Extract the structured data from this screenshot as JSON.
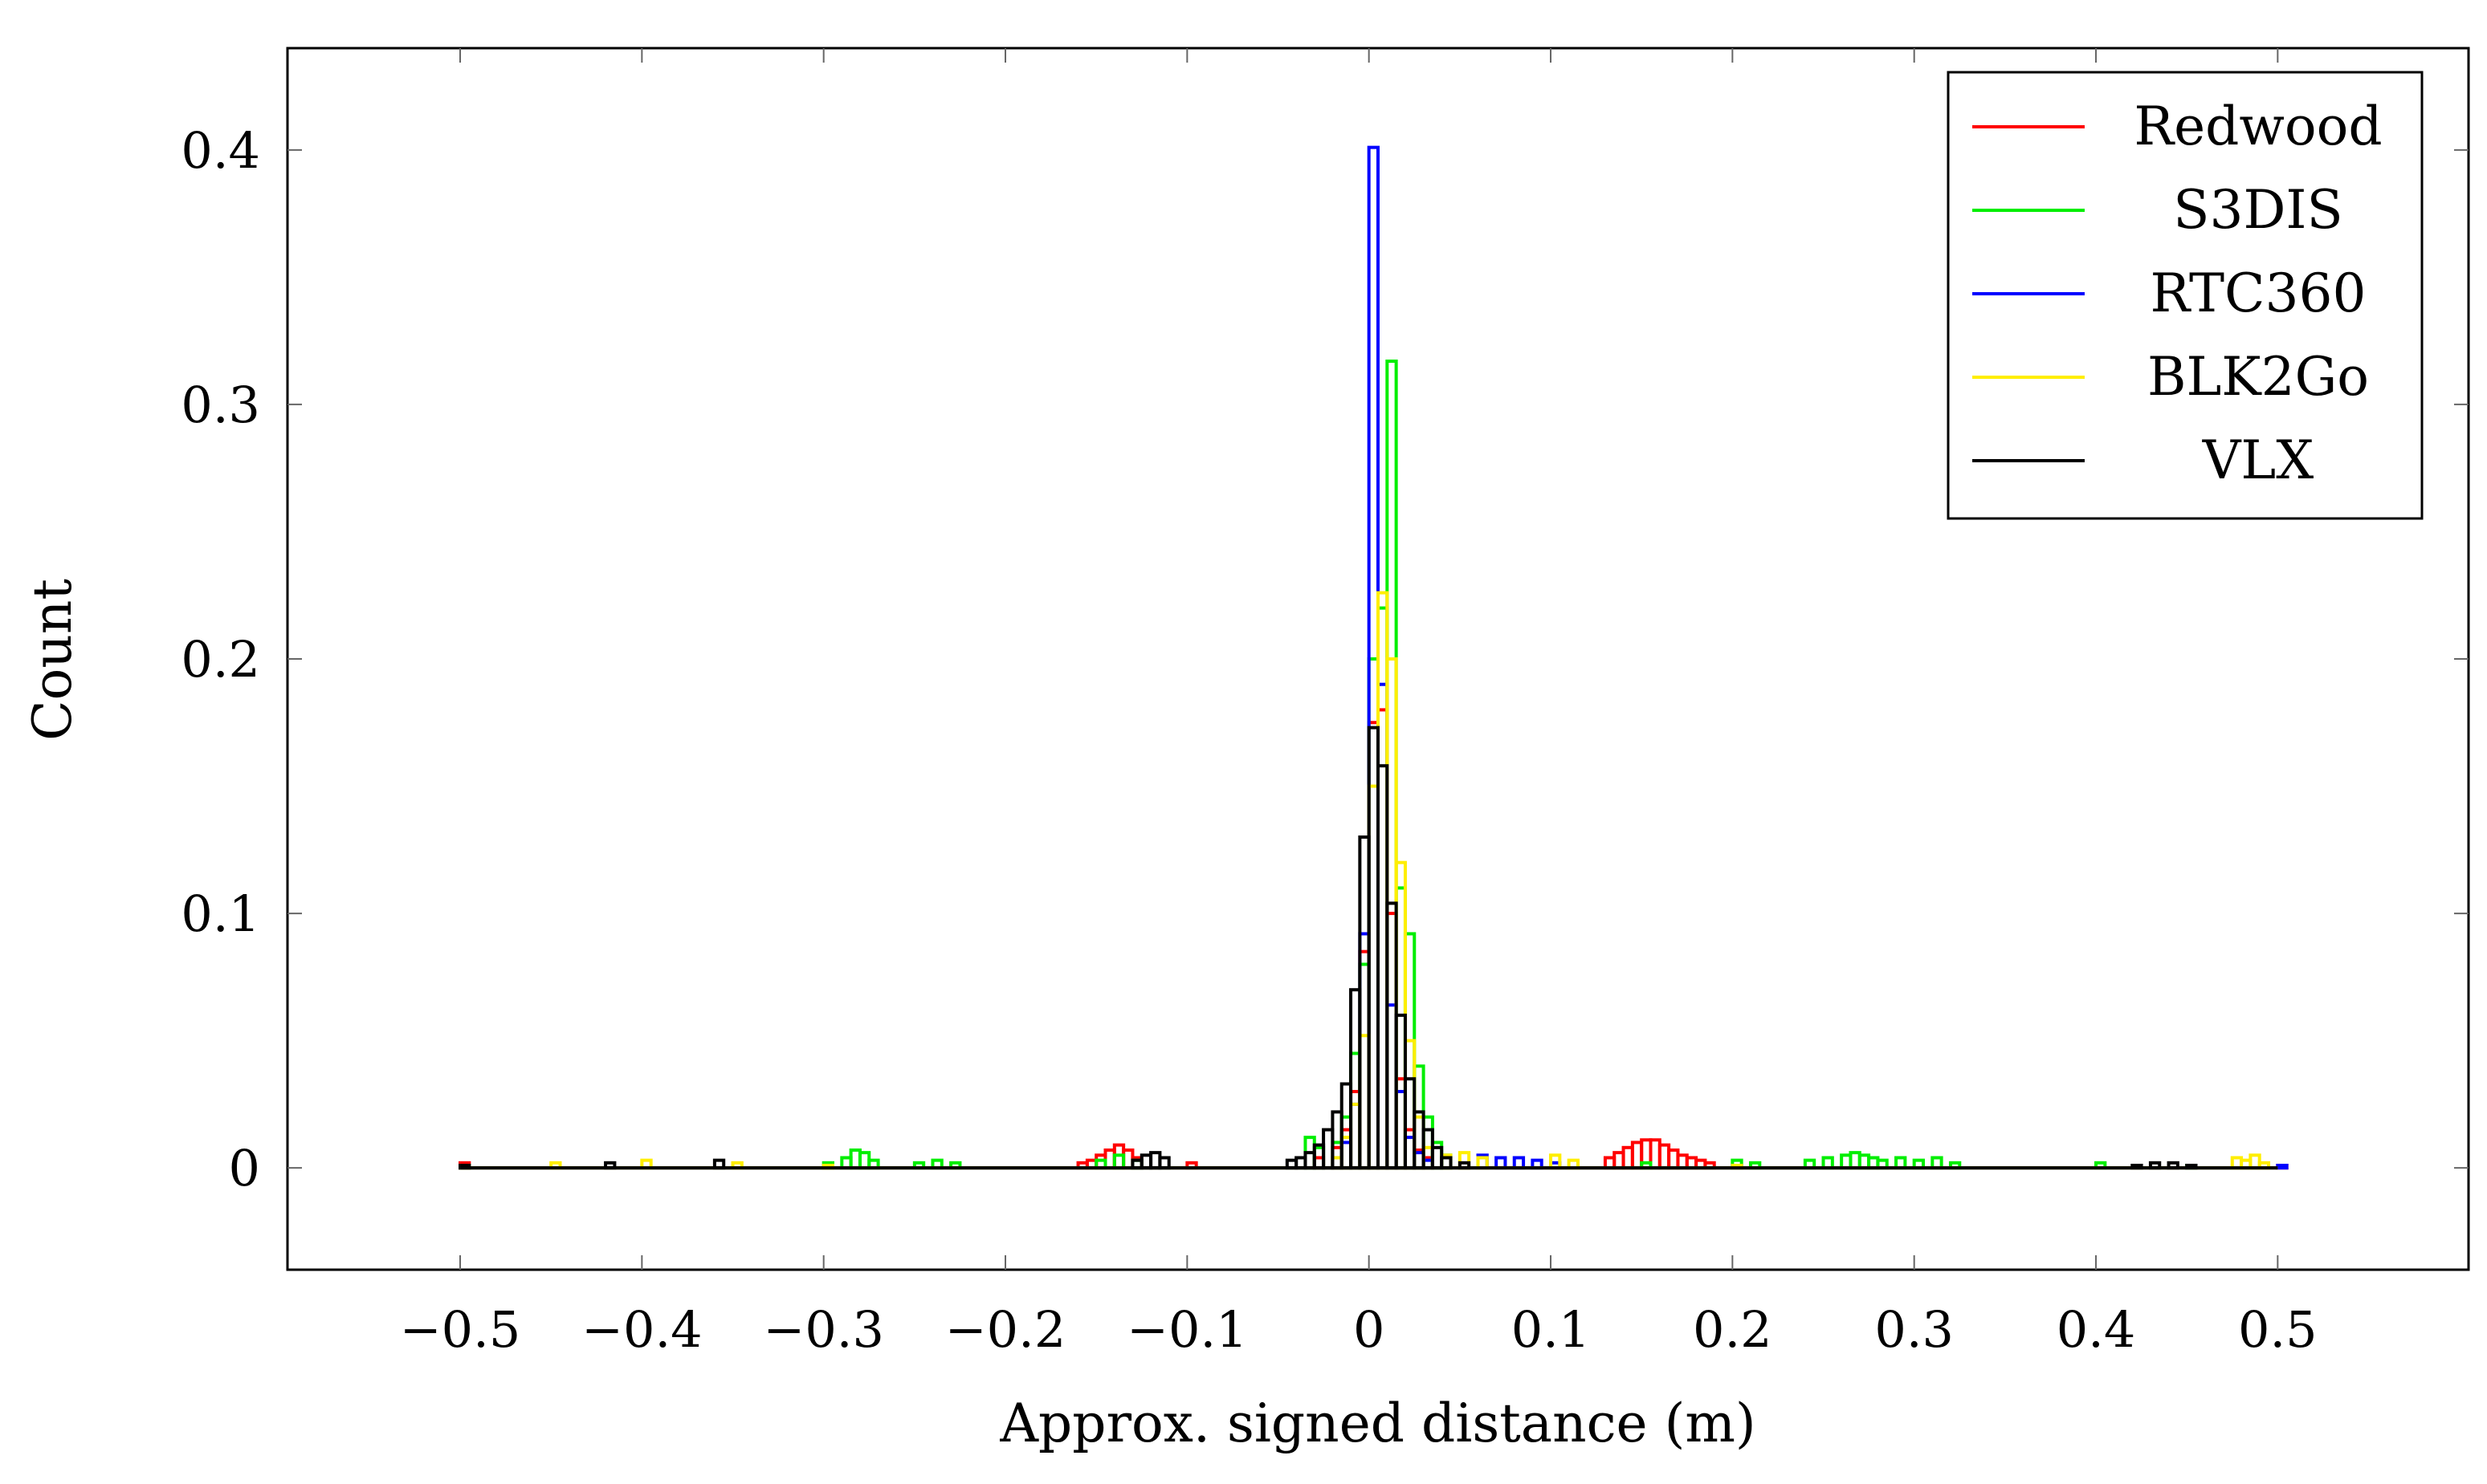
{
  "chart_data": {
    "type": "histogram",
    "title": "",
    "xlabel": "Approx. signed distance (m)",
    "ylabel": "Count",
    "xlim": [
      -0.595,
      0.605
    ],
    "ylim": [
      -0.04,
      0.44
    ],
    "xticks": [
      -0.5,
      -0.4,
      -0.3,
      -0.2,
      -0.1,
      0,
      0.1,
      0.2,
      0.3,
      0.4,
      0.5
    ],
    "xtick_labels": [
      "−0.5",
      "−0.4",
      "−0.3",
      "−0.2",
      "−0.1",
      "0",
      "0.1",
      "0.2",
      "0.3",
      "0.4",
      "0.5"
    ],
    "yticks": [
      0,
      0.1,
      0.2,
      0.3,
      0.4
    ],
    "ytick_labels": [
      "0",
      "0.1",
      "0.2",
      "0.3",
      "0.4"
    ],
    "bin_width": 0.005,
    "legend_position": "top-right",
    "series": [
      {
        "name": "Redwood",
        "color": "#ff0000",
        "bins": [
          [
            -0.5,
            0.002
          ],
          [
            -0.3,
            0.001
          ],
          [
            -0.16,
            0.002
          ],
          [
            -0.155,
            0.003
          ],
          [
            -0.15,
            0.005
          ],
          [
            -0.145,
            0.007
          ],
          [
            -0.14,
            0.009
          ],
          [
            -0.135,
            0.007
          ],
          [
            -0.13,
            0.004
          ],
          [
            -0.1,
            0.002
          ],
          [
            -0.03,
            0.004
          ],
          [
            -0.02,
            0.008
          ],
          [
            -0.015,
            0.015
          ],
          [
            -0.01,
            0.03
          ],
          [
            -0.005,
            0.085
          ],
          [
            0,
            0.175
          ],
          [
            0.005,
            0.18
          ],
          [
            0.01,
            0.1
          ],
          [
            0.015,
            0.035
          ],
          [
            0.02,
            0.015
          ],
          [
            0.025,
            0.007
          ],
          [
            0.03,
            0.004
          ],
          [
            0.13,
            0.004
          ],
          [
            0.135,
            0.006
          ],
          [
            0.14,
            0.008
          ],
          [
            0.145,
            0.01
          ],
          [
            0.15,
            0.011
          ],
          [
            0.155,
            0.011
          ],
          [
            0.16,
            0.009
          ],
          [
            0.165,
            0.007
          ],
          [
            0.17,
            0.005
          ],
          [
            0.175,
            0.004
          ],
          [
            0.18,
            0.003
          ],
          [
            0.185,
            0.002
          ],
          [
            0.5,
            0.001
          ]
        ]
      },
      {
        "name": "S3DIS",
        "color": "#00ee00",
        "bins": [
          [
            -0.5,
            0.001
          ],
          [
            -0.3,
            0.002
          ],
          [
            -0.29,
            0.004
          ],
          [
            -0.285,
            0.007
          ],
          [
            -0.28,
            0.006
          ],
          [
            -0.275,
            0.003
          ],
          [
            -0.25,
            0.002
          ],
          [
            -0.24,
            0.003
          ],
          [
            -0.23,
            0.002
          ],
          [
            -0.15,
            0.003
          ],
          [
            -0.14,
            0.005
          ],
          [
            -0.13,
            0.003
          ],
          [
            -0.035,
            0.012
          ],
          [
            -0.03,
            0.008
          ],
          [
            -0.02,
            0.01
          ],
          [
            -0.015,
            0.02
          ],
          [
            -0.01,
            0.045
          ],
          [
            -0.005,
            0.08
          ],
          [
            0,
            0.2
          ],
          [
            0.005,
            0.22
          ],
          [
            0.01,
            0.317
          ],
          [
            0.015,
            0.11
          ],
          [
            0.02,
            0.092
          ],
          [
            0.025,
            0.04
          ],
          [
            0.03,
            0.02
          ],
          [
            0.035,
            0.01
          ],
          [
            0.04,
            0.005
          ],
          [
            0.15,
            0.002
          ],
          [
            0.2,
            0.003
          ],
          [
            0.21,
            0.002
          ],
          [
            0.24,
            0.003
          ],
          [
            0.25,
            0.004
          ],
          [
            0.26,
            0.005
          ],
          [
            0.265,
            0.006
          ],
          [
            0.27,
            0.005
          ],
          [
            0.275,
            0.004
          ],
          [
            0.28,
            0.003
          ],
          [
            0.29,
            0.004
          ],
          [
            0.3,
            0.003
          ],
          [
            0.31,
            0.004
          ],
          [
            0.32,
            0.002
          ],
          [
            0.4,
            0.002
          ],
          [
            0.45,
            0.001
          ]
        ]
      },
      {
        "name": "RTC360",
        "color": "#0000ff",
        "bins": [
          [
            -0.5,
            0.001
          ],
          [
            -0.02,
            0.004
          ],
          [
            -0.015,
            0.01
          ],
          [
            -0.01,
            0.025
          ],
          [
            -0.005,
            0.092
          ],
          [
            0,
            0.401
          ],
          [
            0.005,
            0.19
          ],
          [
            0.01,
            0.064
          ],
          [
            0.015,
            0.03
          ],
          [
            0.02,
            0.012
          ],
          [
            0.025,
            0.006
          ],
          [
            0.03,
            0.003
          ],
          [
            0.06,
            0.005
          ],
          [
            0.07,
            0.004
          ],
          [
            0.08,
            0.004
          ],
          [
            0.09,
            0.003
          ],
          [
            0.1,
            0.002
          ],
          [
            0.2,
            0.001
          ],
          [
            0.5,
            0.001
          ]
        ]
      },
      {
        "name": "BLK2Go",
        "color": "#ffee00",
        "bins": [
          [
            -0.5,
            0.001
          ],
          [
            -0.45,
            0.002
          ],
          [
            -0.4,
            0.003
          ],
          [
            -0.35,
            0.002
          ],
          [
            -0.3,
            0.001
          ],
          [
            -0.02,
            0.004
          ],
          [
            -0.015,
            0.012
          ],
          [
            -0.01,
            0.025
          ],
          [
            -0.005,
            0.052
          ],
          [
            0,
            0.15
          ],
          [
            0.005,
            0.226
          ],
          [
            0.01,
            0.2
          ],
          [
            0.015,
            0.12
          ],
          [
            0.02,
            0.05
          ],
          [
            0.025,
            0.02
          ],
          [
            0.03,
            0.008
          ],
          [
            0.04,
            0.005
          ],
          [
            0.05,
            0.006
          ],
          [
            0.06,
            0.004
          ],
          [
            0.1,
            0.005
          ],
          [
            0.11,
            0.003
          ],
          [
            0.2,
            0.001
          ],
          [
            0.475,
            0.004
          ],
          [
            0.48,
            0.003
          ],
          [
            0.485,
            0.005
          ],
          [
            0.49,
            0.002
          ]
        ]
      },
      {
        "name": "VLX",
        "color": "#000000",
        "bins": [
          [
            -0.5,
            0.001
          ],
          [
            -0.42,
            0.002
          ],
          [
            -0.36,
            0.003
          ],
          [
            -0.13,
            0.003
          ],
          [
            -0.125,
            0.005
          ],
          [
            -0.12,
            0.006
          ],
          [
            -0.115,
            0.004
          ],
          [
            -0.045,
            0.003
          ],
          [
            -0.04,
            0.004
          ],
          [
            -0.035,
            0.006
          ],
          [
            -0.03,
            0.009
          ],
          [
            -0.025,
            0.015
          ],
          [
            -0.02,
            0.022
          ],
          [
            -0.015,
            0.033
          ],
          [
            -0.01,
            0.07
          ],
          [
            -0.005,
            0.13
          ],
          [
            0,
            0.173
          ],
          [
            0.005,
            0.158
          ],
          [
            0.01,
            0.104
          ],
          [
            0.015,
            0.06
          ],
          [
            0.02,
            0.035
          ],
          [
            0.025,
            0.022
          ],
          [
            0.03,
            0.015
          ],
          [
            0.035,
            0.008
          ],
          [
            0.04,
            0.004
          ],
          [
            0.05,
            0.002
          ],
          [
            0.42,
            0.001
          ],
          [
            0.43,
            0.002
          ],
          [
            0.44,
            0.002
          ],
          [
            0.45,
            0.001
          ]
        ]
      }
    ]
  }
}
